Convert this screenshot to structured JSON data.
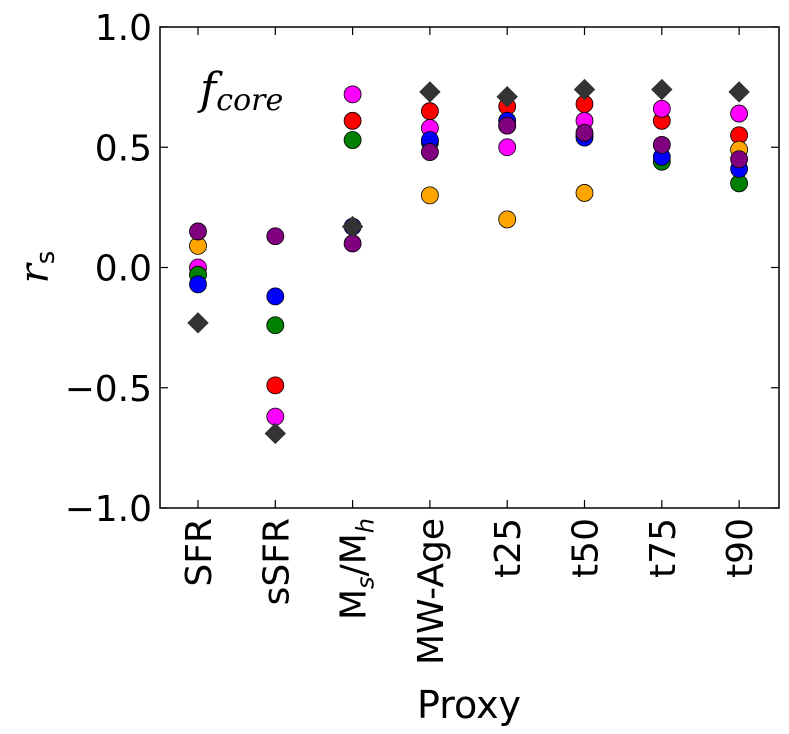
{
  "chart_data": {
    "type": "scatter",
    "annotation": {
      "main": "f",
      "sub": "core"
    },
    "xlabel": "Proxy",
    "ylabel": {
      "main": "r",
      "sub": "s"
    },
    "ylim": [
      -1.0,
      1.0
    ],
    "yticks": [
      -1.0,
      -0.5,
      0.0,
      0.5,
      1.0
    ],
    "ytick_labels": [
      "−1.0",
      "−0.5",
      "0.0",
      "0.5",
      "1.0"
    ],
    "categories": [
      {
        "label": "SFR"
      },
      {
        "label": "sSFR"
      },
      {
        "label": "M",
        "sub1": "s",
        "mid": "/M",
        "sub2": "h"
      },
      {
        "label": "MW-Age"
      },
      {
        "label": "t25"
      },
      {
        "label": "t50"
      },
      {
        "label": "t75"
      },
      {
        "label": "t90"
      }
    ],
    "grid": false,
    "series": [
      {
        "color": "#ff0000",
        "marker": "circle",
        "values": [
          null,
          -0.49,
          0.61,
          0.65,
          0.67,
          0.68,
          0.61,
          0.55
        ]
      },
      {
        "color": "#ff00ff",
        "marker": "circle",
        "values": [
          0.0,
          -0.62,
          0.72,
          0.58,
          0.5,
          0.61,
          0.66,
          0.64
        ]
      },
      {
        "color": "#ffa500",
        "marker": "circle",
        "values": [
          0.09,
          null,
          null,
          0.3,
          0.2,
          0.31,
          null,
          0.49
        ]
      },
      {
        "color": "#008000",
        "marker": "circle",
        "values": [
          -0.03,
          -0.24,
          0.53,
          0.52,
          0.59,
          0.55,
          0.44,
          0.35
        ]
      },
      {
        "color": "#0000ff",
        "marker": "circle",
        "values": [
          -0.07,
          -0.12,
          0.17,
          0.53,
          0.61,
          0.54,
          0.46,
          0.41
        ]
      },
      {
        "color": "#800080",
        "marker": "circle",
        "values": [
          0.15,
          0.13,
          0.1,
          0.48,
          0.59,
          0.56,
          0.51,
          0.45
        ]
      },
      {
        "color": "#333333",
        "marker": "diamond",
        "values": [
          -0.23,
          -0.69,
          0.17,
          0.73,
          0.71,
          0.74,
          0.74,
          0.73
        ]
      }
    ]
  }
}
